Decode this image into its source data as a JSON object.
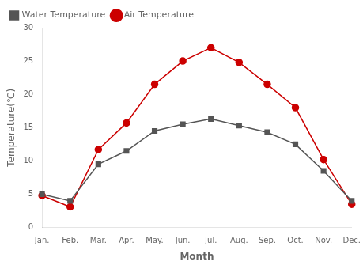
{
  "chart_data": {
    "type": "line",
    "xlabel": "Month",
    "ylabel": "Temperature(℃)",
    "categories": [
      "Jan.",
      "Feb.",
      "Mar.",
      "Apr.",
      "May.",
      "Jun.",
      "Jul.",
      "Aug.",
      "Sep.",
      "Oct.",
      "Nov.",
      "Dec."
    ],
    "series": [
      {
        "name": "Water Temperature",
        "color": "#555555",
        "marker": "square",
        "values": [
          5.0,
          4.0,
          9.5,
          11.5,
          14.5,
          15.5,
          16.3,
          15.3,
          14.3,
          12.5,
          8.5,
          4.0
        ]
      },
      {
        "name": "Air Temperature",
        "color": "#cc0000",
        "marker": "circle",
        "values": [
          4.8,
          3.1,
          11.7,
          15.7,
          21.5,
          25.0,
          27.0,
          24.8,
          21.5,
          18.0,
          10.2,
          3.5
        ]
      }
    ],
    "ylim": [
      0,
      30
    ],
    "yticks": [
      0,
      5,
      10,
      15,
      20,
      25,
      30
    ],
    "grid": false,
    "legend": "upper left"
  }
}
